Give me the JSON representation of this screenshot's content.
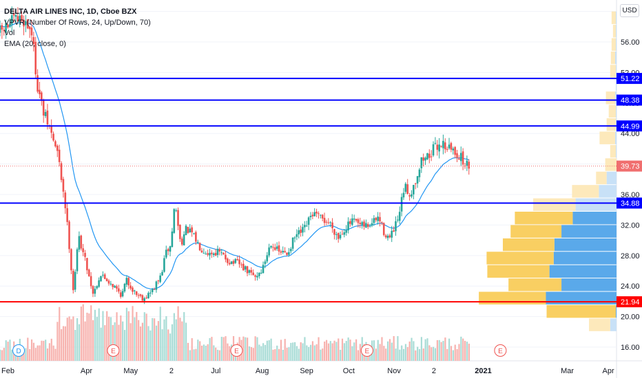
{
  "header": {
    "title": "DELTA AIR LINES INC, 1D, Cboe BZX",
    "indicator_vpvr": "VPVR (Number Of Rows, 24, Up/Down, 70)",
    "indicator_vol": "Vol",
    "indicator_ema": "EMA (20, close, 0)",
    "currency_button": "USD"
  },
  "colors": {
    "up": "#26a69a",
    "down": "#ef5350",
    "ema": "#2196f3",
    "blue_level": "#0000ff",
    "red_level": "#ff0000",
    "vp_up": "#5aa9ea",
    "vp_down": "#f9cf62",
    "vp_up_light": "#c8e1f7",
    "vp_down_light": "#fde9bb",
    "last_price": "#f06f6f",
    "grid": "#f0f3fa",
    "axis_text": "#131722"
  },
  "chart_data": {
    "type": "candlestick",
    "title": "DELTA AIR LINES INC, 1D, Cboe BZX",
    "currency": "USD",
    "ylim": [
      14.2,
      61.5
    ],
    "y_ticks": [
      "16.00",
      "20.00",
      "24.00",
      "28.00",
      "32.00",
      "36.00",
      "40.00",
      "44.00",
      "48.00",
      "52.00",
      "56.00",
      "60.00"
    ],
    "x_range_days": [
      0,
      430
    ],
    "x_ticks": [
      {
        "label": "Feb",
        "day": 0
      },
      {
        "label": "Apr",
        "day": 60
      },
      {
        "label": "May",
        "day": 90
      },
      {
        "label": "2",
        "day": 122
      },
      {
        "label": "Jul",
        "day": 151
      },
      {
        "label": "Aug",
        "day": 182
      },
      {
        "label": "Sep",
        "day": 213
      },
      {
        "label": "Oct",
        "day": 243
      },
      {
        "label": "Nov",
        "day": 274
      },
      {
        "label": "2",
        "day": 305
      },
      {
        "label": "2021",
        "day": 335
      },
      {
        "label": "Mar",
        "day": 395
      },
      {
        "label": "Apr",
        "day": 424
      }
    ],
    "price_path": [
      [
        0,
        57.2
      ],
      [
        10,
        58.8
      ],
      [
        16,
        59.0
      ],
      [
        22,
        57.5
      ],
      [
        26,
        50.5
      ],
      [
        30,
        46.8
      ],
      [
        34,
        45.0
      ],
      [
        40,
        41.5
      ],
      [
        45,
        35.5
      ],
      [
        48,
        30.0
      ],
      [
        51,
        23.5
      ],
      [
        55,
        30.5
      ],
      [
        60,
        27.0
      ],
      [
        65,
        23.0
      ],
      [
        70,
        25.5
      ],
      [
        78,
        24.3
      ],
      [
        85,
        22.8
      ],
      [
        88,
        24.8
      ],
      [
        94,
        23.2
      ],
      [
        100,
        22.4
      ],
      [
        106,
        23.3
      ],
      [
        112,
        25.2
      ],
      [
        116,
        28.5
      ],
      [
        119,
        29.2
      ],
      [
        122,
        35.0
      ],
      [
        126,
        29.5
      ],
      [
        130,
        31.5
      ],
      [
        134,
        30.8
      ],
      [
        140,
        29.0
      ],
      [
        146,
        28.3
      ],
      [
        152,
        28.5
      ],
      [
        160,
        27.2
      ],
      [
        166,
        27.0
      ],
      [
        172,
        26.0
      ],
      [
        178,
        25.2
      ],
      [
        183,
        26.2
      ],
      [
        189,
        29.8
      ],
      [
        194,
        28.5
      ],
      [
        200,
        28.2
      ],
      [
        206,
        30.5
      ],
      [
        212,
        31.3
      ],
      [
        218,
        33.5
      ],
      [
        224,
        32.8
      ],
      [
        230,
        32.3
      ],
      [
        236,
        30.4
      ],
      [
        240,
        31.5
      ],
      [
        246,
        32.5
      ],
      [
        252,
        31.8
      ],
      [
        258,
        32.0
      ],
      [
        264,
        33.0
      ],
      [
        268,
        31.0
      ],
      [
        272,
        30.2
      ],
      [
        278,
        32.8
      ],
      [
        282,
        37.0
      ],
      [
        286,
        36.0
      ],
      [
        290,
        38.0
      ],
      [
        294,
        40.5
      ],
      [
        298,
        41.0
      ],
      [
        304,
        42.2
      ],
      [
        308,
        42.8
      ],
      [
        314,
        42.0
      ],
      [
        320,
        41.2
      ],
      [
        324,
        40.0
      ],
      [
        328,
        39.73
      ]
    ],
    "events": [
      {
        "label": "D",
        "day": 13,
        "color": "#2196f3"
      },
      {
        "label": "E",
        "day": 79,
        "color": "#ef5350"
      },
      {
        "label": "E",
        "day": 165,
        "color": "#ef5350"
      },
      {
        "label": "E",
        "day": 256,
        "color": "#ef5350"
      },
      {
        "label": "E",
        "day": 349,
        "color": "#ef5350"
      }
    ],
    "horizontal_levels": [
      {
        "price": 51.22,
        "label": "51.22",
        "color": "#0000ff"
      },
      {
        "price": 48.38,
        "label": "48.38",
        "color": "#0000ff"
      },
      {
        "price": 44.99,
        "label": "44.99",
        "color": "#0000ff"
      },
      {
        "price": 34.88,
        "label": "34.88",
        "color": "#0000ff"
      },
      {
        "price": 21.94,
        "label": "21.94",
        "color": "#ff0000"
      }
    ],
    "last_price": {
      "price": 39.73,
      "label": "39.73"
    },
    "volume_profile": {
      "rows": 24,
      "row_bottom_price": 18.0,
      "row_height": 1.75,
      "up": [
        9,
        1,
        100,
        78,
        95,
        89,
        88,
        78,
        62,
        58,
        25,
        14,
        0,
        1,
        2,
        1,
        1,
        2,
        1,
        1,
        2,
        1,
        1,
        1
      ],
      "down": [
        30,
        98,
        95,
        75,
        88,
        95,
        73,
        72,
        82,
        60,
        38,
        15,
        16,
        8,
        22,
        13,
        10,
        13,
        0,
        8,
        6,
        6,
        4,
        6
      ]
    }
  }
}
